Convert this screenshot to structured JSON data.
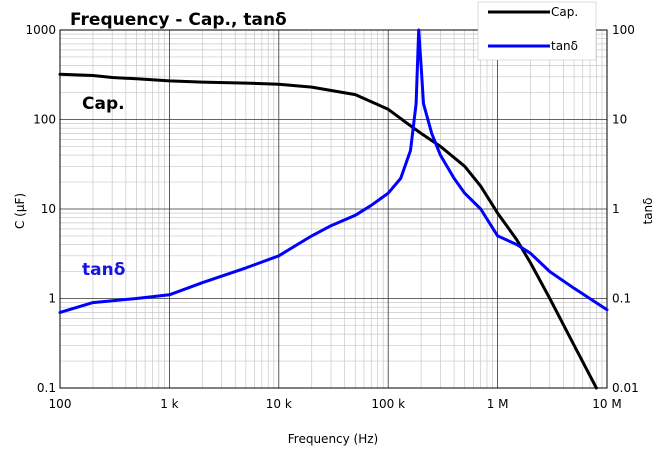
{
  "chart_data": {
    "type": "line",
    "title": "Frequency - Cap., tanδ",
    "xlabel": "Frequency (Hz)",
    "ylabel_left": "C (μF)",
    "ylabel_right": "tanδ",
    "x_scale": "log",
    "y_scale": "log",
    "xlim": [
      100,
      10000000
    ],
    "ylim_left": [
      0.1,
      1000
    ],
    "ylim_right": [
      0.01,
      100
    ],
    "x_ticks": [
      {
        "value": 100,
        "label": "100"
      },
      {
        "value": 1000,
        "label": "1 k"
      },
      {
        "value": 10000,
        "label": "10 k"
      },
      {
        "value": 100000,
        "label": "100 k"
      },
      {
        "value": 1000000,
        "label": "1 M"
      },
      {
        "value": 10000000,
        "label": "10 M"
      }
    ],
    "y_ticks_left": [
      {
        "value": 0.1,
        "label": "0.1"
      },
      {
        "value": 1,
        "label": "1"
      },
      {
        "value": 10,
        "label": "10"
      },
      {
        "value": 100,
        "label": "100"
      },
      {
        "value": 1000,
        "label": "1000"
      }
    ],
    "y_ticks_right": [
      {
        "value": 0.01,
        "label": "0.01"
      },
      {
        "value": 0.1,
        "label": "0.1"
      },
      {
        "value": 1,
        "label": "1"
      },
      {
        "value": 10,
        "label": "10"
      },
      {
        "value": 100,
        "label": "100"
      }
    ],
    "grid": true,
    "legend_placement": "top-right",
    "series": [
      {
        "name": "Cap.",
        "axis": "left",
        "color": "#000000",
        "x": [
          100,
          200,
          300,
          500,
          1000,
          2000,
          5000,
          10000,
          20000,
          50000,
          100000,
          150000,
          200000,
          300000,
          500000,
          700000,
          1000000,
          1500000,
          2000000,
          3000000,
          5000000,
          8000000
        ],
        "y": [
          320,
          310,
          295,
          285,
          270,
          262,
          255,
          248,
          230,
          190,
          130,
          90,
          70,
          50,
          30,
          18,
          9,
          4.5,
          2.5,
          1.0,
          0.3,
          0.1
        ]
      },
      {
        "name": "tanδ",
        "axis": "right",
        "color": "#0000ff",
        "x": [
          100,
          200,
          500,
          1000,
          2000,
          5000,
          10000,
          20000,
          30000,
          50000,
          70000,
          100000,
          130000,
          160000,
          180000,
          190000,
          200000,
          210000,
          250000,
          300000,
          400000,
          500000,
          700000,
          1000000,
          1500000,
          2000000,
          3000000,
          5000000,
          10000000
        ],
        "y": [
          0.07,
          0.09,
          0.1,
          0.11,
          0.15,
          0.22,
          0.3,
          0.5,
          0.65,
          0.85,
          1.1,
          1.5,
          2.2,
          4.5,
          15,
          100,
          40,
          15,
          7,
          4,
          2.2,
          1.5,
          1.0,
          0.5,
          0.4,
          0.32,
          0.2,
          0.13,
          0.075
        ]
      }
    ],
    "annotations": [
      {
        "text": "Cap.",
        "color": "#000000",
        "x": 150,
        "y_left": 160
      },
      {
        "text": "tanδ",
        "color": "#1414e6",
        "x": 150,
        "y_left": 2.1
      }
    ]
  }
}
